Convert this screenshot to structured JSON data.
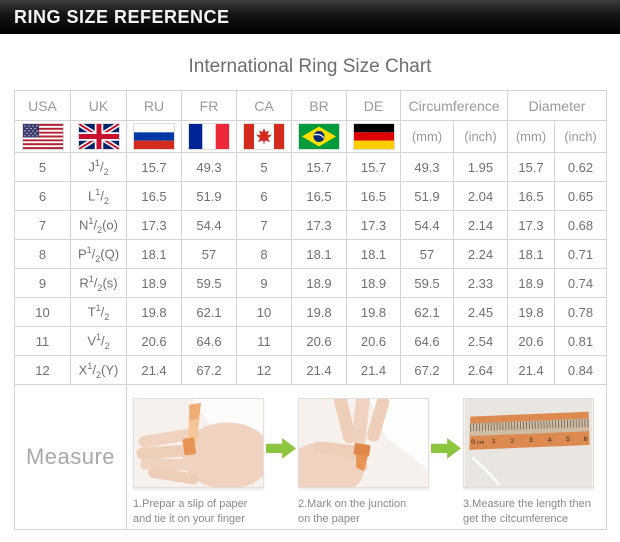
{
  "header_bar": {
    "title": "RING SIZE REFERENCE"
  },
  "page": {
    "title": "International Ring Size Chart"
  },
  "table": {
    "country_columns": [
      "USA",
      "UK",
      "RU",
      "FR",
      "CA",
      "BR",
      "DE"
    ],
    "group_headers": {
      "circumference": "Circumference",
      "diameter": "Diameter"
    },
    "unit_labels": {
      "mm": "(mm)",
      "inch": "(inch)"
    },
    "flags": [
      "usa-flag",
      "uk-flag",
      "ru-flag",
      "fr-flag",
      "ca-flag",
      "br-flag",
      "de-flag"
    ],
    "uk_frac": {
      "sup": "1",
      "slash": "/",
      "sub": "2"
    },
    "rows": [
      {
        "usa": "5",
        "uk": {
          "letter": "J",
          "suffix": ""
        },
        "ru": "15.7",
        "fr": "49.3",
        "ca": "5",
        "br": "15.7",
        "de": "15.7",
        "circ_mm": "49.3",
        "circ_inch": "1.95",
        "dia_mm": "15.7",
        "dia_inch": "0.62"
      },
      {
        "usa": "6",
        "uk": {
          "letter": "L",
          "suffix": ""
        },
        "ru": "16.5",
        "fr": "51.9",
        "ca": "6",
        "br": "16.5",
        "de": "16.5",
        "circ_mm": "51.9",
        "circ_inch": "2.04",
        "dia_mm": "16.5",
        "dia_inch": "0.65"
      },
      {
        "usa": "7",
        "uk": {
          "letter": "N",
          "suffix": "(o)"
        },
        "ru": "17.3",
        "fr": "54.4",
        "ca": "7",
        "br": "17.3",
        "de": "17.3",
        "circ_mm": "54.4",
        "circ_inch": "2.14",
        "dia_mm": "17.3",
        "dia_inch": "0.68"
      },
      {
        "usa": "8",
        "uk": {
          "letter": "P",
          "suffix": "(Q)"
        },
        "ru": "18.1",
        "fr": "57",
        "ca": "8",
        "br": "18.1",
        "de": "18.1",
        "circ_mm": "57",
        "circ_inch": "2.24",
        "dia_mm": "18.1",
        "dia_inch": "0.71"
      },
      {
        "usa": "9",
        "uk": {
          "letter": "R",
          "suffix": "(s)"
        },
        "ru": "18.9",
        "fr": "59.5",
        "ca": "9",
        "br": "18.9",
        "de": "18.9",
        "circ_mm": "59.5",
        "circ_inch": "2.33",
        "dia_mm": "18.9",
        "dia_inch": "0.74"
      },
      {
        "usa": "10",
        "uk": {
          "letter": "T",
          "suffix": ""
        },
        "ru": "19.8",
        "fr": "62.1",
        "ca": "10",
        "br": "19.8",
        "de": "19.8",
        "circ_mm": "62.1",
        "circ_inch": "2.45",
        "dia_mm": "19.8",
        "dia_inch": "0.78"
      },
      {
        "usa": "11",
        "uk": {
          "letter": "V",
          "suffix": ""
        },
        "ru": "20.6",
        "fr": "64.6",
        "ca": "11",
        "br": "20.6",
        "de": "20.6",
        "circ_mm": "64.6",
        "circ_inch": "2.54",
        "dia_mm": "20.6",
        "dia_inch": "0.81"
      },
      {
        "usa": "12",
        "uk": {
          "letter": "X",
          "suffix": "(Y)"
        },
        "ru": "21.4",
        "fr": "67.2",
        "ca": "12",
        "br": "21.4",
        "de": "21.4",
        "circ_mm": "67.2",
        "circ_inch": "2.64",
        "dia_mm": "21.4",
        "dia_inch": "0.84"
      }
    ]
  },
  "measure": {
    "label": "Measure",
    "steps": [
      {
        "caption_line1": "1.Prepar a slip of paper",
        "caption_line2": "and tie it on your finger"
      },
      {
        "caption_line1": "2.Mark on the junction",
        "caption_line2": "on the paper"
      },
      {
        "caption_line1": "3.Measure the length then",
        "caption_line2": "get the citcumference"
      }
    ],
    "ruler_labels": [
      "0",
      "cm",
      "1",
      "2",
      "3",
      "4",
      "5",
      "6"
    ]
  },
  "colors": {
    "arrow_green": "#8cc63e",
    "paper_orange": "#dd8a50",
    "bar_black": "#000000"
  }
}
